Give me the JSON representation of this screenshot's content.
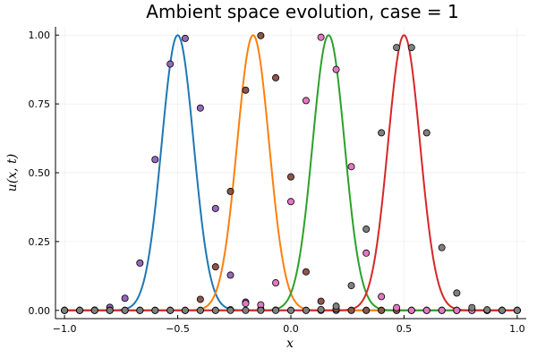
{
  "chart_data": {
    "type": "line",
    "title": "Ambient space evolution, case = 1",
    "xlabel": "x",
    "ylabel": "u(x, t)",
    "xlim": [
      -1.04,
      1.04
    ],
    "ylim": [
      -0.03,
      1.03
    ],
    "xticks": [
      -1.0,
      -0.5,
      0.0,
      0.5,
      1.0
    ],
    "xtick_labels": [
      "−1.0",
      "−0.5",
      "0.0",
      "0.5",
      "1.0"
    ],
    "yticks": [
      0.0,
      0.25,
      0.5,
      0.75,
      1.0
    ],
    "ytick_labels": [
      "0.00",
      "0.25",
      "0.50",
      "0.75",
      "1.00"
    ],
    "grid": true,
    "legend": "none",
    "sigma": 0.1,
    "series": [
      {
        "center": -0.5,
        "color": "#1f77b4"
      },
      {
        "center": -0.1667,
        "color": "#ff7f0e"
      },
      {
        "center": 0.1667,
        "color": "#2ca02c"
      },
      {
        "center": 0.5,
        "color": "#d62728"
      }
    ],
    "points": [
      {
        "color": "#9467bd",
        "x": [
          -1.0,
          -0.933,
          -0.867,
          -0.8,
          -0.733,
          -0.667,
          -0.6,
          -0.533,
          -0.467,
          -0.4,
          -0.333,
          -0.267,
          -0.2,
          -0.133,
          -0.067,
          0.0,
          0.067,
          0.133,
          0.2,
          0.267,
          0.333,
          0.4,
          0.467,
          0.533,
          0.6,
          0.667,
          0.733,
          0.8,
          0.867,
          0.933,
          1.0
        ],
        "y": [
          0.0,
          0.0,
          0.001,
          0.011,
          0.044,
          0.172,
          0.548,
          0.895,
          0.988,
          0.735,
          0.37,
          0.128,
          0.03,
          0.005,
          0.001,
          0.0,
          0.0,
          0.0,
          0.0,
          0.0,
          0.0,
          0.0,
          0.0,
          0.0,
          0.0,
          0.0,
          0.0,
          0.0,
          0.0,
          0.0,
          0.0
        ]
      },
      {
        "color": "#8c564b",
        "x": [
          -1.0,
          -0.933,
          -0.867,
          -0.8,
          -0.733,
          -0.667,
          -0.6,
          -0.533,
          -0.467,
          -0.4,
          -0.333,
          -0.267,
          -0.2,
          -0.133,
          -0.067,
          0.0,
          0.067,
          0.133,
          0.2,
          0.267,
          0.333,
          0.4,
          0.467,
          0.533,
          0.6,
          0.667,
          0.733,
          0.8,
          0.867,
          0.933,
          1.0
        ],
        "y": [
          0.0,
          0.0,
          0.0,
          0.0,
          0.0,
          0.0,
          0.0,
          0.0,
          0.0,
          0.04,
          0.158,
          0.432,
          0.8,
          0.998,
          0.845,
          0.485,
          0.14,
          0.033,
          0.005,
          0.0,
          0.0,
          0.0,
          0.0,
          0.0,
          0.0,
          0.0,
          0.0,
          0.0,
          0.0,
          0.0,
          0.0
        ]
      },
      {
        "color": "#e377c2",
        "x": [
          -1.0,
          -0.933,
          -0.867,
          -0.8,
          -0.733,
          -0.667,
          -0.6,
          -0.533,
          -0.467,
          -0.4,
          -0.333,
          -0.267,
          -0.2,
          -0.133,
          -0.067,
          0.0,
          0.067,
          0.133,
          0.2,
          0.267,
          0.333,
          0.4,
          0.467,
          0.533,
          0.6,
          0.667,
          0.733,
          0.8,
          0.867,
          0.933,
          1.0
        ],
        "y": [
          0.0,
          0.0,
          0.0,
          0.0,
          0.0,
          0.0,
          0.0,
          0.0,
          0.0,
          0.0,
          0.0,
          0.002,
          0.025,
          0.02,
          0.1,
          0.395,
          0.762,
          0.992,
          0.875,
          0.522,
          0.208,
          0.05,
          0.01,
          0.0,
          0.0,
          0.0,
          0.0,
          0.0,
          0.0,
          0.0,
          0.0
        ]
      },
      {
        "color": "#7f7f7f",
        "x": [
          -1.0,
          -0.933,
          -0.867,
          -0.8,
          -0.733,
          -0.667,
          -0.6,
          -0.533,
          -0.467,
          -0.4,
          -0.333,
          -0.267,
          -0.2,
          -0.133,
          -0.067,
          0.0,
          0.067,
          0.133,
          0.2,
          0.267,
          0.333,
          0.4,
          0.467,
          0.533,
          0.6,
          0.667,
          0.733,
          0.8,
          0.867,
          0.933,
          1.0
        ],
        "y": [
          0.0,
          0.0,
          0.0,
          0.0,
          0.0,
          0.0,
          0.0,
          0.0,
          0.0,
          0.0,
          0.0,
          0.0,
          0.0,
          0.0,
          0.0,
          0.0,
          0.0,
          0.003,
          0.015,
          0.09,
          0.295,
          0.645,
          0.955,
          0.955,
          0.645,
          0.228,
          0.063,
          0.01,
          0.002,
          0.0,
          0.0
        ]
      }
    ]
  }
}
